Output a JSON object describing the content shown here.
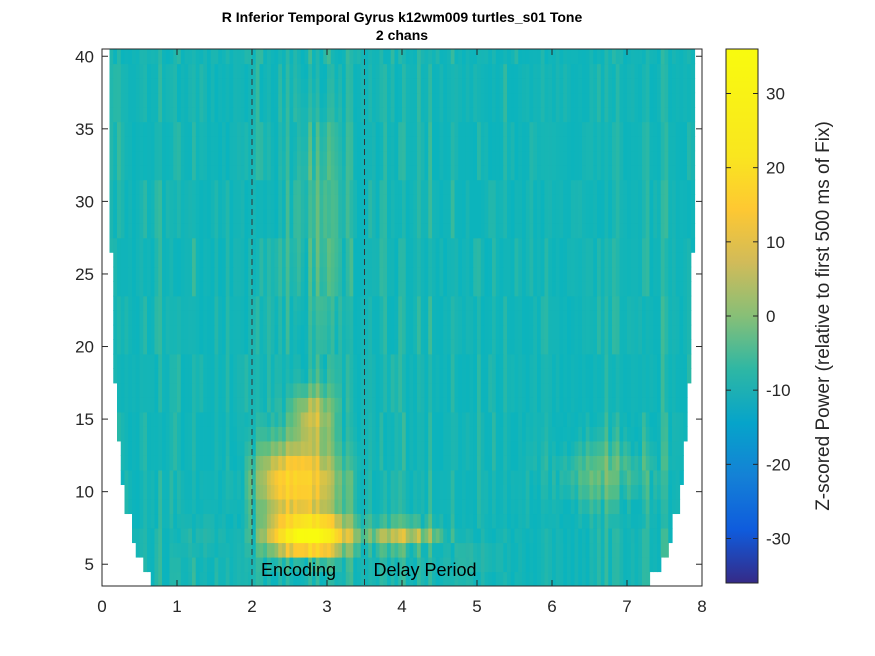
{
  "chart_data": {
    "type": "heatmap",
    "title": "R Inferior Temporal Gyrus k12wm009 turtles_s01 Tone",
    "subtitle": "2 chans",
    "xlabel": "",
    "ylabel": "",
    "xlim": [
      0,
      8
    ],
    "ylim": [
      3.5,
      40.5
    ],
    "x_ticks": [
      "0",
      "1",
      "2",
      "3",
      "4",
      "5",
      "6",
      "7",
      "8"
    ],
    "y_ticks": [
      "5",
      "10",
      "15",
      "20",
      "25",
      "30",
      "35",
      "40"
    ],
    "grid": false,
    "markers": [
      {
        "x": 2.0,
        "label": "Encoding",
        "style": "dashed"
      },
      {
        "x": 3.5,
        "label": "Delay Period",
        "style": "dashed"
      }
    ],
    "colorbar": {
      "label": "Z-scored Power (relative to first 500 ms of Fix)",
      "range": [
        -36,
        36
      ],
      "ticks": [
        "-30",
        "-20",
        "-10",
        "0",
        "10",
        "20",
        "30"
      ],
      "colormap": "parula"
    },
    "hotspots": [
      {
        "time_range": [
          2.3,
          3.2
        ],
        "freq_range": [
          6,
          8
        ],
        "value": 36
      },
      {
        "time_range": [
          2.1,
          3.1
        ],
        "freq_range": [
          8,
          13.5
        ],
        "value": 22
      },
      {
        "time_range": [
          2.6,
          3.0
        ],
        "freq_range": [
          13.5,
          17
        ],
        "value": 12
      },
      {
        "time_range": [
          3.5,
          4.6
        ],
        "freq_range": [
          6.5,
          7.5
        ],
        "value": 12
      },
      {
        "time_range": [
          6.0,
          7.4
        ],
        "freq_range": [
          9,
          13.5
        ],
        "value": 6
      },
      {
        "time_range": [
          1.1,
          1.6
        ],
        "freq_range": [
          6,
          8
        ],
        "value": -5
      },
      {
        "time_range": [
          4.5,
          5.4
        ],
        "freq_range": [
          4,
          7
        ],
        "value": -6
      },
      {
        "time_range": [
          2.5,
          3.2
        ],
        "freq_range": [
          18,
          40
        ],
        "value": 4
      }
    ]
  }
}
